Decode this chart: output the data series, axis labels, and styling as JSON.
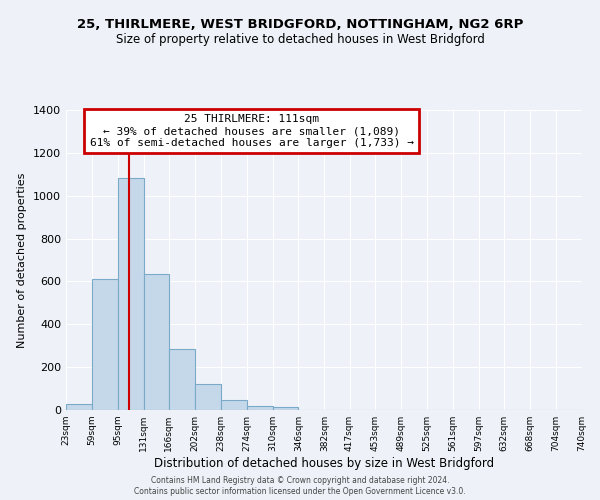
{
  "title1": "25, THIRLMERE, WEST BRIDGFORD, NOTTINGHAM, NG2 6RP",
  "title2": "Size of property relative to detached houses in West Bridgford",
  "xlabel": "Distribution of detached houses by size in West Bridgford",
  "ylabel": "Number of detached properties",
  "bin_edges": [
    23,
    59,
    95,
    131,
    166,
    202,
    238,
    274,
    310,
    346,
    382,
    417,
    453,
    489,
    525,
    561,
    597,
    632,
    668,
    704,
    740
  ],
  "bar_heights": [
    30,
    610,
    1085,
    635,
    285,
    120,
    45,
    20,
    15,
    0,
    0,
    0,
    0,
    0,
    0,
    0,
    0,
    0,
    0,
    0
  ],
  "bar_color": "#c5d8ea",
  "bar_edge_color": "#7aaac8",
  "vline_x": 111,
  "vline_color": "#cc0000",
  "annotation_title": "25 THIRLMERE: 111sqm",
  "annotation_line1": "← 39% of detached houses are smaller (1,089)",
  "annotation_line2": "61% of semi-detached houses are larger (1,733) →",
  "annotation_box_edge_color": "#cc0000",
  "ylim": [
    0,
    1400
  ],
  "yticks": [
    0,
    200,
    400,
    600,
    800,
    1000,
    1200,
    1400
  ],
  "tick_labels": [
    "23sqm",
    "59sqm",
    "95sqm",
    "131sqm",
    "166sqm",
    "202sqm",
    "238sqm",
    "274sqm",
    "310sqm",
    "346sqm",
    "382sqm",
    "417sqm",
    "453sqm",
    "489sqm",
    "525sqm",
    "561sqm",
    "597sqm",
    "632sqm",
    "668sqm",
    "704sqm",
    "740sqm"
  ],
  "background_color": "#eef2f8",
  "grid_color": "#ffffff",
  "footer1": "Contains HM Land Registry data © Crown copyright and database right 2024.",
  "footer2": "Contains public sector information licensed under the Open Government Licence v3.0."
}
